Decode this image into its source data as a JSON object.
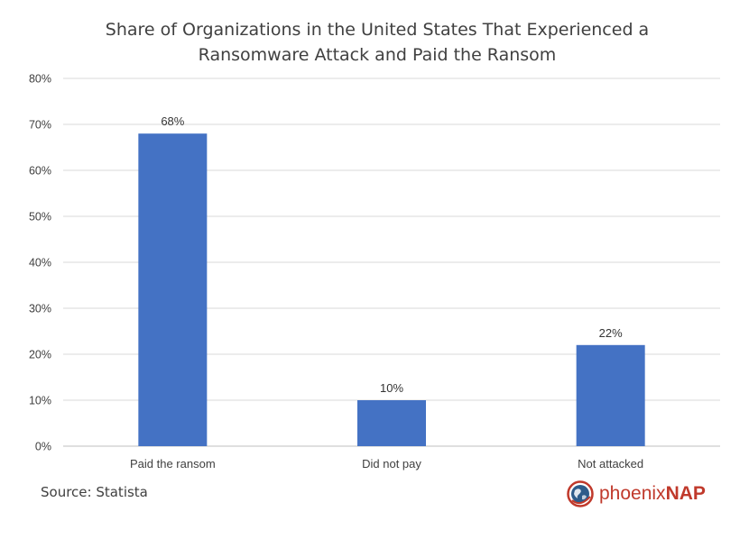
{
  "chart_data": {
    "type": "bar",
    "title_lines": [
      "Share of Organizations in the United States That Experienced a",
      "Ransomware Attack and Paid the Ransom"
    ],
    "categories": [
      "Paid the ransom",
      "Did not pay",
      "Not attacked"
    ],
    "values": [
      68,
      10,
      22
    ],
    "data_labels": [
      "68%",
      "10%",
      "22%"
    ],
    "xlabel": "",
    "ylabel": "",
    "ylim": [
      0,
      80
    ],
    "yticks": [
      "0%",
      "10%",
      "20%",
      "30%",
      "40%",
      "50%",
      "60%",
      "70%",
      "80%"
    ],
    "grid": true,
    "legend": "none",
    "bar_color": "#4472c4",
    "grid_color": "#d9d9d9"
  },
  "footer": {
    "source": "Source: Statista",
    "logo_text_a": "phoenix",
    "logo_text_b": "NAP",
    "logo_color": "#c0392b",
    "logo_icon": "globe-icon"
  }
}
